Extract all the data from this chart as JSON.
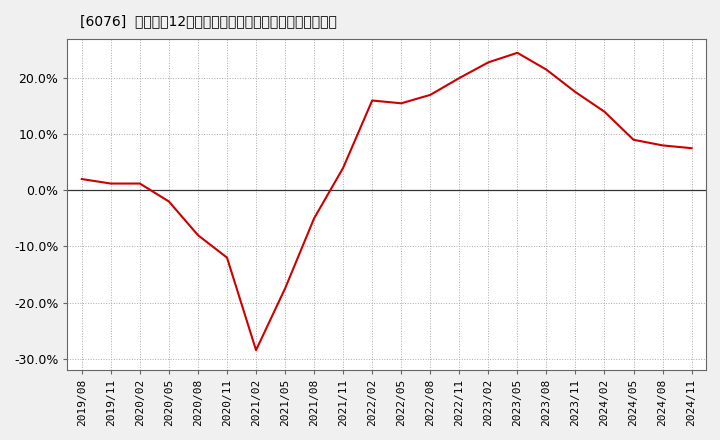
{
  "title": "[6076]  売上高の12か月移動合計の対前年同期増減率の推移",
  "line_color": "#cc0000",
  "background_color": "#f0f0f0",
  "plot_bg_color": "#ffffff",
  "grid_color": "#aaaaaa",
  "ylim": [
    -0.32,
    0.27
  ],
  "yticks": [
    -0.3,
    -0.2,
    -0.1,
    0.0,
    0.1,
    0.2
  ],
  "dates": [
    "2019/08",
    "2019/11",
    "2020/02",
    "2020/05",
    "2020/08",
    "2020/11",
    "2021/02",
    "2021/05",
    "2021/08",
    "2021/11",
    "2022/02",
    "2022/05",
    "2022/08",
    "2022/11",
    "2023/02",
    "2023/05",
    "2023/08",
    "2023/11",
    "2024/02",
    "2024/05",
    "2024/08",
    "2024/11"
  ],
  "values": [
    0.02,
    0.012,
    0.012,
    -0.02,
    -0.08,
    -0.12,
    -0.285,
    -0.175,
    -0.05,
    0.04,
    0.16,
    0.155,
    0.17,
    0.2,
    0.228,
    0.245,
    0.215,
    0.175,
    0.14,
    0.09,
    0.08,
    0.075
  ],
  "title_fontsize": 11,
  "tick_fontsize": 8,
  "ytick_fontsize": 9
}
